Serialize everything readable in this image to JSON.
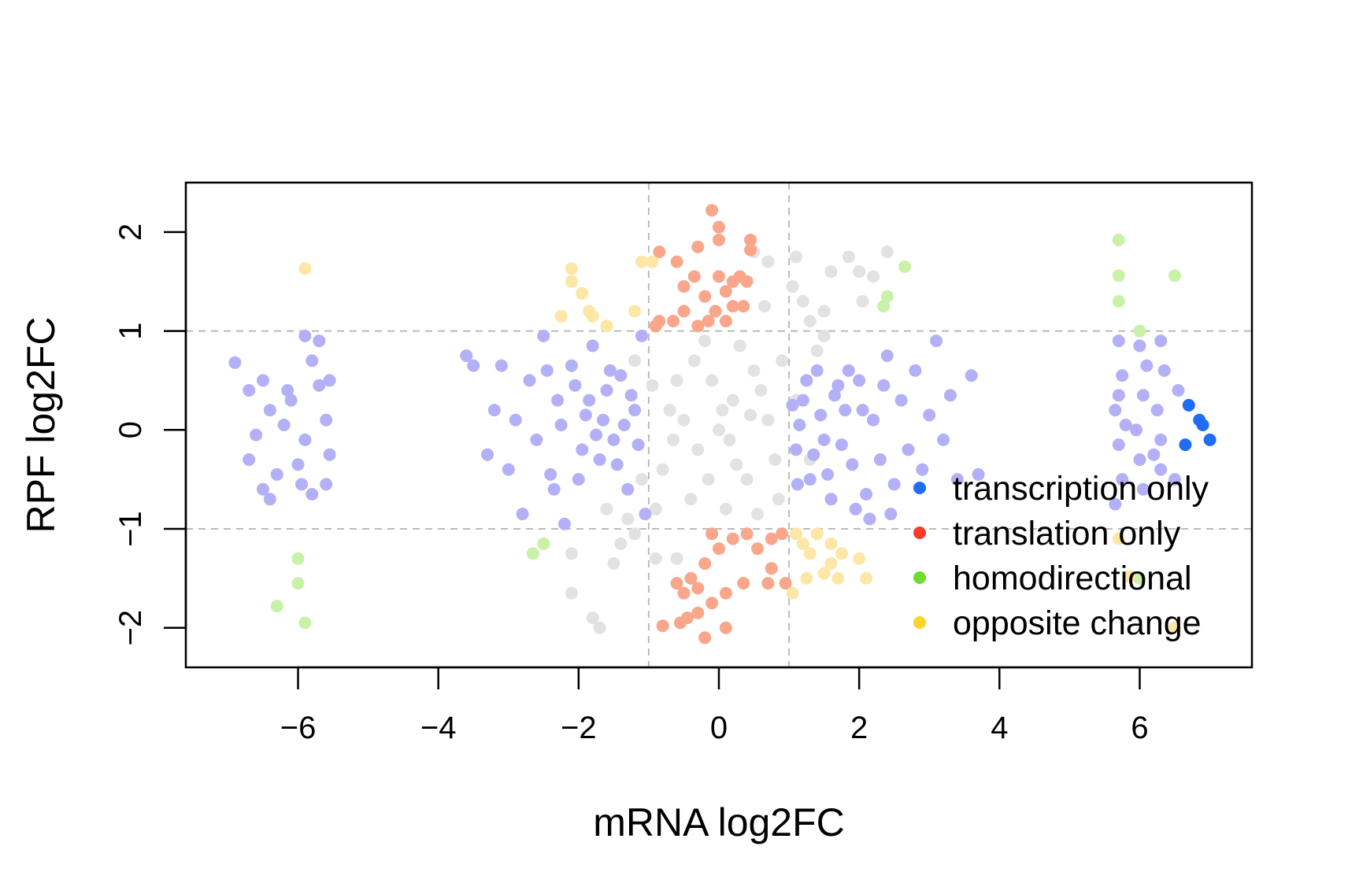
{
  "chart_data": {
    "type": "scatter",
    "xlabel": "mRNA log2FC",
    "ylabel": "RPF log2FC",
    "xlim": [
      -7.6,
      7.6
    ],
    "ylim": [
      -2.4,
      2.5
    ],
    "x_ticks": [
      -6,
      -4,
      -2,
      0,
      2,
      4,
      6
    ],
    "y_ticks": [
      -2,
      -1,
      0,
      1,
      2
    ],
    "x_tick_labels": [
      "−6",
      "−4",
      "−2",
      "0",
      "2",
      "4",
      "6"
    ],
    "y_tick_labels": [
      "−2",
      "−1",
      "0",
      "1",
      "2"
    ],
    "threshold_lines": {
      "x": [
        -1,
        1
      ],
      "y": [
        -1,
        1
      ],
      "style": "dashed",
      "color": "#bbbbbb"
    },
    "grid": false,
    "legend": {
      "position": "bottom-right"
    },
    "series": [
      {
        "name": "no change",
        "legend": false,
        "color": "#e2e2e2",
        "points": [
          [
            0,
            0
          ],
          [
            0.2,
            0.3
          ],
          [
            -0.3,
            -0.2
          ],
          [
            0.5,
            0.6
          ],
          [
            -0.6,
            0.5
          ],
          [
            0.4,
            -0.5
          ],
          [
            -0.4,
            -0.7
          ],
          [
            0.7,
            0.1
          ],
          [
            -0.7,
            0.2
          ],
          [
            0.1,
            -0.8
          ],
          [
            0.3,
            0.85
          ],
          [
            -0.2,
            0.9
          ],
          [
            0.8,
            -0.3
          ],
          [
            -0.8,
            -0.4
          ],
          [
            0.6,
            0.4
          ],
          [
            -0.1,
            0.5
          ],
          [
            0.25,
            -0.35
          ],
          [
            -0.5,
            0.1
          ],
          [
            0.9,
            0.7
          ],
          [
            -0.9,
            -0.8
          ],
          [
            0.55,
            -0.85
          ],
          [
            -0.35,
            0.7
          ],
          [
            0.05,
            0.2
          ],
          [
            0.15,
            -0.1
          ],
          [
            -0.15,
            -0.5
          ],
          [
            0.85,
            -0.7
          ],
          [
            -0.65,
            -0.1
          ],
          [
            0.45,
            0.15
          ],
          [
            1.2,
            1.3
          ],
          [
            1.6,
            1.6
          ],
          [
            1.3,
            1.1
          ],
          [
            0.7,
            1.7
          ],
          [
            1.05,
            1.45
          ],
          [
            1.85,
            1.75
          ],
          [
            2.0,
            1.6
          ],
          [
            2.4,
            1.8
          ],
          [
            2.2,
            1.55
          ],
          [
            1.5,
            1.2
          ],
          [
            1.1,
            1.75
          ],
          [
            0.5,
            1.8
          ],
          [
            -0.9,
            -1.3
          ],
          [
            -1.3,
            -0.9
          ],
          [
            -1.5,
            -1.35
          ],
          [
            -2.1,
            -1.25
          ],
          [
            -2.1,
            -1.65
          ],
          [
            -1.8,
            -1.9
          ],
          [
            -1.7,
            -2.0
          ],
          [
            -1.4,
            -1.15
          ],
          [
            -0.6,
            -1.3
          ],
          [
            -1.2,
            -1.05
          ],
          [
            1.4,
            0.8
          ],
          [
            1.3,
            -0.3
          ],
          [
            -1.2,
            0.7
          ],
          [
            -1.6,
            -0.8
          ],
          [
            1.5,
            0.95
          ],
          [
            -1.1,
            -0.5
          ],
          [
            1.1,
            0.3
          ],
          [
            -0.95,
            0.45
          ],
          [
            2.05,
            1.3
          ],
          [
            0.65,
            1.25
          ]
        ]
      },
      {
        "name": "transcription only",
        "legend": true,
        "legend_color": "#1f6ef2",
        "color": "#b3b0f7",
        "points": [
          [
            -6.9,
            0.68
          ],
          [
            -6.7,
            0.4
          ],
          [
            -6.5,
            0.5
          ],
          [
            -6.6,
            -0.05
          ],
          [
            -6.4,
            0.2
          ],
          [
            -6.7,
            -0.3
          ],
          [
            -6.5,
            -0.6
          ],
          [
            -6.3,
            -0.45
          ],
          [
            -6.4,
            -0.7
          ],
          [
            -6.2,
            0.05
          ],
          [
            -6.1,
            0.3
          ],
          [
            -6.0,
            -0.35
          ],
          [
            -5.9,
            0.95
          ],
          [
            -5.8,
            0.7
          ],
          [
            -5.9,
            -0.1
          ],
          [
            -5.7,
            0.45
          ],
          [
            -5.8,
            -0.65
          ],
          [
            -5.6,
            0.1
          ],
          [
            -5.6,
            -0.55
          ],
          [
            -5.7,
            0.9
          ],
          [
            -5.55,
            0.5
          ],
          [
            -5.55,
            -0.25
          ],
          [
            -6.15,
            0.4
          ],
          [
            -5.95,
            -0.55
          ],
          [
            -3.6,
            0.75
          ],
          [
            -3.5,
            0.65
          ],
          [
            -3.3,
            -0.25
          ],
          [
            -3.2,
            0.2
          ],
          [
            -3.1,
            0.65
          ],
          [
            -3.0,
            -0.4
          ],
          [
            -2.9,
            0.1
          ],
          [
            -2.8,
            -0.85
          ],
          [
            -2.7,
            0.5
          ],
          [
            -2.6,
            -0.1
          ],
          [
            -2.5,
            0.95
          ],
          [
            -2.4,
            -0.45
          ],
          [
            -2.3,
            0.3
          ],
          [
            -2.2,
            -0.95
          ],
          [
            -2.1,
            0.65
          ],
          [
            -2.0,
            -0.5
          ],
          [
            -1.9,
            0.15
          ],
          [
            -1.8,
            0.85
          ],
          [
            -1.7,
            -0.3
          ],
          [
            -1.6,
            0.4
          ],
          [
            -1.5,
            -0.1
          ],
          [
            -1.4,
            0.55
          ],
          [
            -1.3,
            -0.6
          ],
          [
            -1.2,
            0.2
          ],
          [
            -1.1,
            0.95
          ],
          [
            -1.05,
            -0.85
          ],
          [
            -1.85,
            0.3
          ],
          [
            -1.75,
            -0.05
          ],
          [
            -1.65,
            0.1
          ],
          [
            -1.95,
            -0.2
          ],
          [
            -1.55,
            0.6
          ],
          [
            -1.45,
            -0.35
          ],
          [
            -1.35,
            0.05
          ],
          [
            -1.25,
            0.35
          ],
          [
            -1.15,
            -0.15
          ],
          [
            -2.05,
            0.45
          ],
          [
            -2.25,
            0.05
          ],
          [
            -2.35,
            -0.6
          ],
          [
            -2.45,
            0.6
          ],
          [
            1.1,
            -0.2
          ],
          [
            1.2,
            0.3
          ],
          [
            1.3,
            -0.5
          ],
          [
            1.4,
            0.6
          ],
          [
            1.5,
            -0.1
          ],
          [
            1.6,
            -0.7
          ],
          [
            1.7,
            0.45
          ],
          [
            1.8,
            0.2
          ],
          [
            1.9,
            -0.35
          ],
          [
            2.0,
            0.5
          ],
          [
            2.1,
            -0.65
          ],
          [
            2.2,
            0.1
          ],
          [
            2.3,
            -0.3
          ],
          [
            2.4,
            0.75
          ],
          [
            2.5,
            -0.55
          ],
          [
            2.6,
            0.3
          ],
          [
            2.7,
            -0.2
          ],
          [
            2.8,
            0.6
          ],
          [
            2.9,
            -0.4
          ],
          [
            3.0,
            0.15
          ],
          [
            3.1,
            0.9
          ],
          [
            3.2,
            -0.1
          ],
          [
            3.3,
            0.35
          ],
          [
            3.4,
            -0.5
          ],
          [
            3.6,
            0.55
          ],
          [
            3.7,
            -0.45
          ],
          [
            1.15,
            0.05
          ],
          [
            1.25,
            0.5
          ],
          [
            1.35,
            -0.25
          ],
          [
            1.45,
            0.15
          ],
          [
            1.55,
            -0.45
          ],
          [
            1.65,
            0.35
          ],
          [
            1.75,
            -0.15
          ],
          [
            1.85,
            0.6
          ],
          [
            1.95,
            -0.8
          ],
          [
            2.05,
            0.2
          ],
          [
            2.15,
            -0.9
          ],
          [
            2.35,
            0.45
          ],
          [
            2.45,
            -0.85
          ],
          [
            1.05,
            0.25
          ],
          [
            1.12,
            -0.55
          ],
          [
            5.7,
            0.9
          ],
          [
            5.75,
            0.55
          ],
          [
            5.65,
            0.2
          ],
          [
            5.7,
            -0.15
          ],
          [
            5.75,
            -0.5
          ],
          [
            5.65,
            -0.75
          ],
          [
            5.8,
            0.05
          ],
          [
            6.0,
            0.85
          ],
          [
            6.05,
            0.35
          ],
          [
            5.95,
            0.0
          ],
          [
            6.0,
            -0.3
          ],
          [
            6.05,
            -0.6
          ],
          [
            6.3,
            0.9
          ],
          [
            6.35,
            0.6
          ],
          [
            6.25,
            0.2
          ],
          [
            6.3,
            -0.1
          ],
          [
            6.3,
            -0.4
          ],
          [
            6.55,
            0.4
          ],
          [
            6.5,
            -0.5
          ],
          [
            5.7,
            0.35
          ],
          [
            6.1,
            0.65
          ],
          [
            6.2,
            -0.25
          ]
        ]
      },
      {
        "name": "transcription only (solid)",
        "legend": false,
        "color": "#1f6ef2",
        "points": [
          [
            6.7,
            0.25
          ],
          [
            6.85,
            0.1
          ],
          [
            6.9,
            0.05
          ],
          [
            7.0,
            -0.1
          ],
          [
            6.65,
            -0.15
          ]
        ]
      },
      {
        "name": "translation only",
        "legend": true,
        "legend_color": "#ff3a2a",
        "color": "#f9a68b",
        "points": [
          [
            -0.1,
            2.22
          ],
          [
            0.0,
            2.05
          ],
          [
            0.0,
            1.92
          ],
          [
            0.45,
            1.92
          ],
          [
            0.45,
            1.82
          ],
          [
            -0.3,
            1.85
          ],
          [
            -0.85,
            1.8
          ],
          [
            -0.6,
            1.7
          ],
          [
            -0.5,
            1.45
          ],
          [
            -0.35,
            1.55
          ],
          [
            -0.2,
            1.35
          ],
          [
            0.0,
            1.55
          ],
          [
            0.1,
            1.4
          ],
          [
            0.2,
            1.5
          ],
          [
            0.3,
            1.55
          ],
          [
            0.4,
            1.5
          ],
          [
            0.2,
            1.25
          ],
          [
            -0.05,
            1.2
          ],
          [
            -0.15,
            1.1
          ],
          [
            -0.3,
            1.05
          ],
          [
            -0.5,
            1.2
          ],
          [
            -0.65,
            1.1
          ],
          [
            -0.85,
            1.1
          ],
          [
            -0.9,
            1.05
          ],
          [
            0.1,
            1.1
          ],
          [
            0.35,
            1.25
          ],
          [
            -0.1,
            -1.05
          ],
          [
            0.0,
            -1.2
          ],
          [
            0.2,
            -1.1
          ],
          [
            0.4,
            -1.05
          ],
          [
            0.55,
            -1.2
          ],
          [
            0.75,
            -1.1
          ],
          [
            0.9,
            -1.05
          ],
          [
            -0.2,
            -1.35
          ],
          [
            -0.4,
            -1.5
          ],
          [
            -0.6,
            -1.55
          ],
          [
            -0.5,
            -1.65
          ],
          [
            -0.3,
            -1.6
          ],
          [
            -0.1,
            -1.75
          ],
          [
            0.1,
            -1.65
          ],
          [
            0.35,
            -1.55
          ],
          [
            0.7,
            -1.55
          ],
          [
            0.95,
            -1.55
          ],
          [
            -0.3,
            -1.85
          ],
          [
            -0.45,
            -1.9
          ],
          [
            -0.55,
            -1.95
          ],
          [
            -0.8,
            -1.98
          ],
          [
            -0.2,
            -2.1
          ],
          [
            0.1,
            -2.0
          ],
          [
            0.75,
            -1.4
          ]
        ]
      },
      {
        "name": "homodirectional",
        "legend": true,
        "legend_color": "#6fdc2e",
        "color": "#c8f2a8",
        "points": [
          [
            2.65,
            1.65
          ],
          [
            2.4,
            1.35
          ],
          [
            2.35,
            1.25
          ],
          [
            -2.65,
            -1.25
          ],
          [
            -2.5,
            -1.15
          ],
          [
            -6.0,
            -1.3
          ],
          [
            -6.0,
            -1.55
          ],
          [
            -6.3,
            -1.78
          ],
          [
            -5.9,
            -1.95
          ],
          [
            5.7,
            1.92
          ],
          [
            5.7,
            1.56
          ],
          [
            5.7,
            1.3
          ],
          [
            6.0,
            1.0
          ],
          [
            6.5,
            1.56
          ],
          [
            6.0,
            -1.5
          ]
        ]
      },
      {
        "name": "opposite change",
        "legend": true,
        "legend_color": "#ffd52a",
        "color": "#fde7a6",
        "points": [
          [
            -5.9,
            1.63
          ],
          [
            -2.1,
            1.63
          ],
          [
            -2.1,
            1.5
          ],
          [
            -1.95,
            1.38
          ],
          [
            -2.25,
            1.15
          ],
          [
            -1.85,
            1.2
          ],
          [
            -1.8,
            1.15
          ],
          [
            -1.6,
            1.05
          ],
          [
            -1.2,
            1.2
          ],
          [
            -1.1,
            1.7
          ],
          [
            -0.95,
            1.7
          ],
          [
            1.1,
            -1.05
          ],
          [
            1.2,
            -1.15
          ],
          [
            1.3,
            -1.25
          ],
          [
            1.4,
            -1.05
          ],
          [
            1.25,
            -1.5
          ],
          [
            1.05,
            -1.65
          ],
          [
            1.6,
            -1.35
          ],
          [
            1.7,
            -1.5
          ],
          [
            1.5,
            -1.45
          ],
          [
            1.6,
            -1.15
          ],
          [
            1.75,
            -1.25
          ],
          [
            2.0,
            -1.3
          ],
          [
            2.1,
            -1.5
          ],
          [
            5.7,
            -1.1
          ],
          [
            5.85,
            -1.48
          ],
          [
            6.5,
            -2.0
          ]
        ]
      }
    ]
  }
}
